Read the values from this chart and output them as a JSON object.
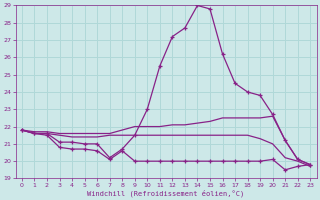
{
  "xlabel": "Windchill (Refroidissement éolien,°C)",
  "background_color": "#cde8e8",
  "grid_color": "#b0d8d8",
  "line_color": "#882288",
  "xlim": [
    -0.5,
    23.5
  ],
  "ylim": [
    19,
    29
  ],
  "xtick_labels": [
    "0",
    "1",
    "2",
    "3",
    "4",
    "5",
    "6",
    "7",
    "8",
    "9",
    "10",
    "11",
    "12",
    "13",
    "14",
    "15",
    "16",
    "17",
    "18",
    "19",
    "20",
    "21",
    "22",
    "23"
  ],
  "yticks": [
    19,
    20,
    21,
    22,
    23,
    24,
    25,
    26,
    27,
    28,
    29
  ],
  "series": [
    {
      "x": [
        0,
        1,
        2,
        3,
        4,
        5,
        6,
        7,
        8,
        9,
        10,
        11,
        12,
        13,
        14,
        15,
        16,
        17,
        18,
        19,
        20,
        21,
        22,
        23
      ],
      "y": [
        21.8,
        21.6,
        21.5,
        20.8,
        20.7,
        20.7,
        20.6,
        20.1,
        20.6,
        20.0,
        20.0,
        20.0,
        20.0,
        20.0,
        20.0,
        20.0,
        20.0,
        20.0,
        20.0,
        20.0,
        20.1,
        19.5,
        19.7,
        19.8
      ],
      "marker": true
    },
    {
      "x": [
        0,
        1,
        2,
        3,
        4,
        5,
        6,
        7,
        8,
        9,
        10,
        11,
        12,
        13,
        14,
        15,
        16,
        17,
        18,
        19,
        20,
        21,
        22,
        23
      ],
      "y": [
        21.8,
        21.6,
        21.6,
        21.5,
        21.4,
        21.4,
        21.4,
        21.5,
        21.5,
        21.5,
        21.5,
        21.5,
        21.5,
        21.5,
        21.5,
        21.5,
        21.5,
        21.5,
        21.5,
        21.3,
        21.0,
        20.2,
        20.0,
        19.7
      ],
      "marker": false
    },
    {
      "x": [
        0,
        1,
        2,
        3,
        4,
        5,
        6,
        7,
        8,
        9,
        10,
        11,
        12,
        13,
        14,
        15,
        16,
        17,
        18,
        19,
        20,
        21,
        22,
        23
      ],
      "y": [
        21.8,
        21.7,
        21.7,
        21.6,
        21.6,
        21.6,
        21.6,
        21.6,
        21.8,
        22.0,
        22.0,
        22.0,
        22.1,
        22.1,
        22.2,
        22.3,
        22.5,
        22.5,
        22.5,
        22.5,
        22.6,
        21.2,
        20.1,
        19.8
      ],
      "marker": false
    },
    {
      "x": [
        0,
        1,
        2,
        3,
        4,
        5,
        6,
        7,
        8,
        9,
        10,
        11,
        12,
        13,
        14,
        15,
        16,
        17,
        18,
        19,
        20,
        21,
        22,
        23
      ],
      "y": [
        21.8,
        21.6,
        21.6,
        21.1,
        21.1,
        21.0,
        21.0,
        20.2,
        20.7,
        21.5,
        23.0,
        25.5,
        27.2,
        27.7,
        29.0,
        28.8,
        26.2,
        24.5,
        24.0,
        23.8,
        22.7,
        21.2,
        20.1,
        19.8
      ],
      "marker": true
    }
  ]
}
